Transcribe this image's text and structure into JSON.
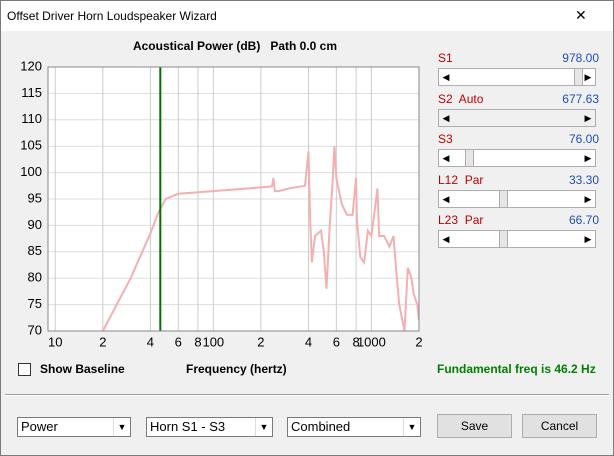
{
  "window": {
    "title": "Offset Driver Horn Loudspeaker Wizard",
    "close": "✕"
  },
  "chart_data": {
    "type": "line",
    "title": "Acoustical Power (dB)   Path 0.0 cm",
    "x_label": "Frequency (hertz)",
    "log_x": true,
    "grid": true,
    "xlim": [
      9,
      2000
    ],
    "ylim": [
      70,
      120
    ],
    "yticks": [
      70,
      75,
      80,
      85,
      90,
      95,
      100,
      105,
      110,
      115,
      120
    ],
    "xticks": [
      10,
      {
        "value": 20,
        "label": "2"
      },
      {
        "value": 40,
        "label": "4"
      },
      {
        "value": 60,
        "label": "6"
      },
      {
        "value": 80,
        "label": "8"
      },
      100,
      {
        "value": 200,
        "label": "2"
      },
      {
        "value": 400,
        "label": "4"
      },
      {
        "value": 600,
        "label": "6"
      },
      {
        "value": 800,
        "label": "8"
      },
      1000,
      {
        "value": 2000,
        "label": "2"
      }
    ],
    "series": [
      {
        "color": "#f4b0b0",
        "x": [
          20,
          30,
          40,
          45,
          50,
          60,
          100,
          200,
          235,
          240,
          245,
          260,
          300,
          380,
          400,
          410,
          420,
          440,
          480,
          500,
          520,
          545,
          565,
          583,
          600,
          650,
          700,
          760,
          800,
          810,
          850,
          900,
          950,
          1000,
          1092,
          1120,
          1200,
          1300,
          1380,
          1439,
          1500,
          1618,
          1700,
          1791,
          1850,
          1950,
          2000
        ],
        "values": [
          70,
          80,
          88.5,
          92.5,
          95,
          96,
          96.5,
          97.2,
          97.4,
          99,
          96.5,
          96.5,
          97,
          97.5,
          104,
          91,
          83,
          88,
          89,
          85,
          78,
          90,
          97,
          105,
          99,
          94,
          92,
          92,
          99,
          91,
          84,
          83,
          89,
          88,
          97,
          88,
          88,
          86,
          88,
          81,
          75,
          70,
          82,
          80,
          77,
          75,
          72
        ]
      }
    ],
    "marker": {
      "x": 46.2,
      "color": "#007000"
    }
  },
  "sliders": [
    {
      "label": "S1",
      "value": "978.00"
    },
    {
      "label": "S2  Auto",
      "value": "677.63"
    },
    {
      "label": "S3",
      "value": "76.00"
    },
    {
      "label": "L12  Par",
      "value": "33.30"
    },
    {
      "label": "L23  Par",
      "value": "66.70"
    }
  ],
  "checkbox": {
    "label": "Show Baseline"
  },
  "status": "Fundamental freq is 46.2 Hz",
  "dropdowns": [
    "Power",
    "Horn S1 - S3",
    "Combined"
  ],
  "buttons": [
    "Save",
    "Cancel"
  ]
}
